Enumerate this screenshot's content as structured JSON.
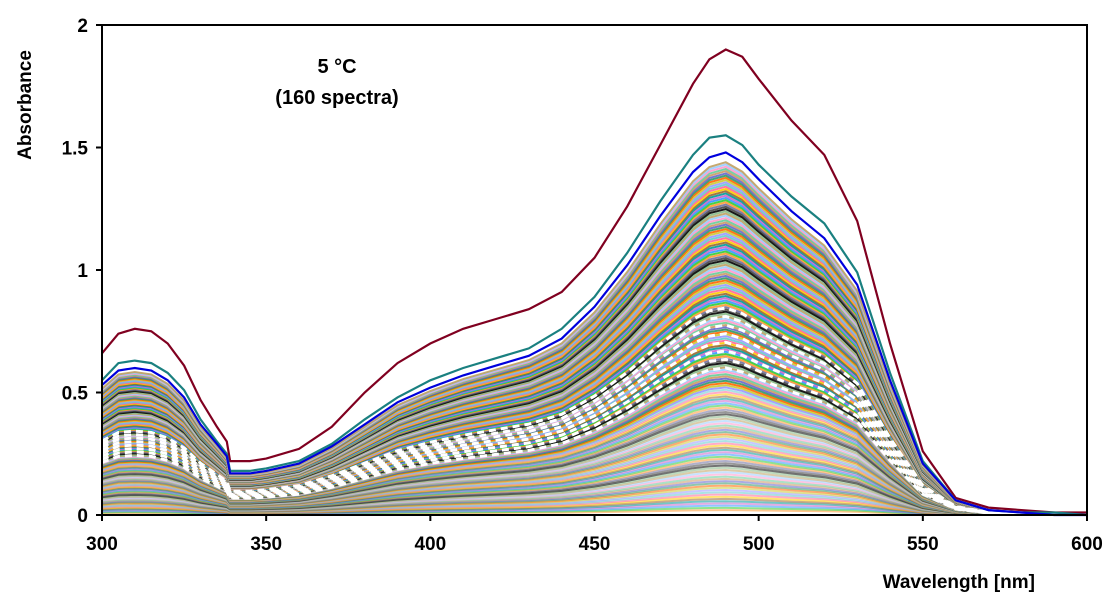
{
  "chart_data": {
    "type": "line",
    "title": "",
    "xlabel": "Wavelength [nm]",
    "ylabel": "Absorbance",
    "xlim": [
      300,
      600
    ],
    "ylim": [
      0,
      2
    ],
    "x_ticks": [
      "300",
      "350",
      "400",
      "450",
      "500",
      "550",
      "600"
    ],
    "y_ticks": [
      "0",
      "0.5",
      "1",
      "1.5",
      "2"
    ],
    "grid": false,
    "legend": "none",
    "annotation_line1": "5 °C",
    "annotation_line2": "(160 spectra)",
    "spectrum_count": 160,
    "x": [
      300,
      305,
      310,
      315,
      320,
      325,
      330,
      335,
      338,
      339,
      340,
      345,
      350,
      360,
      370,
      380,
      390,
      400,
      410,
      420,
      430,
      440,
      450,
      460,
      470,
      480,
      485,
      490,
      495,
      500,
      510,
      520,
      530,
      540,
      550,
      560,
      570,
      580,
      590,
      600
    ],
    "highlight_series": [
      {
        "name": "",
        "color": "#800020",
        "values": [
          0.66,
          0.74,
          0.76,
          0.75,
          0.7,
          0.61,
          0.47,
          0.36,
          0.3,
          0.22,
          0.22,
          0.22,
          0.23,
          0.27,
          0.36,
          0.5,
          0.62,
          0.7,
          0.76,
          0.8,
          0.84,
          0.91,
          1.05,
          1.26,
          1.51,
          1.76,
          1.86,
          1.9,
          1.87,
          1.78,
          1.61,
          1.47,
          1.2,
          0.7,
          0.26,
          0.07,
          0.03,
          0.02,
          0.01,
          0.01
        ]
      },
      {
        "name": "",
        "color": "#1a8080",
        "values": [
          0.55,
          0.62,
          0.63,
          0.62,
          0.58,
          0.51,
          0.39,
          0.3,
          0.25,
          0.18,
          0.18,
          0.18,
          0.19,
          0.22,
          0.29,
          0.39,
          0.48,
          0.55,
          0.6,
          0.64,
          0.68,
          0.76,
          0.89,
          1.07,
          1.28,
          1.47,
          1.54,
          1.55,
          1.51,
          1.43,
          1.3,
          1.19,
          0.99,
          0.58,
          0.22,
          0.06,
          0.02,
          0.01,
          0.01,
          0.0
        ]
      },
      {
        "name": "",
        "color": "#0000dd",
        "values": [
          0.53,
          0.59,
          0.6,
          0.59,
          0.55,
          0.48,
          0.37,
          0.29,
          0.24,
          0.17,
          0.17,
          0.17,
          0.18,
          0.21,
          0.28,
          0.37,
          0.46,
          0.52,
          0.57,
          0.61,
          0.65,
          0.72,
          0.85,
          1.02,
          1.22,
          1.4,
          1.46,
          1.48,
          1.44,
          1.37,
          1.24,
          1.13,
          0.94,
          0.55,
          0.21,
          0.06,
          0.02,
          0.01,
          0.0,
          0.0
        ]
      }
    ]
  }
}
